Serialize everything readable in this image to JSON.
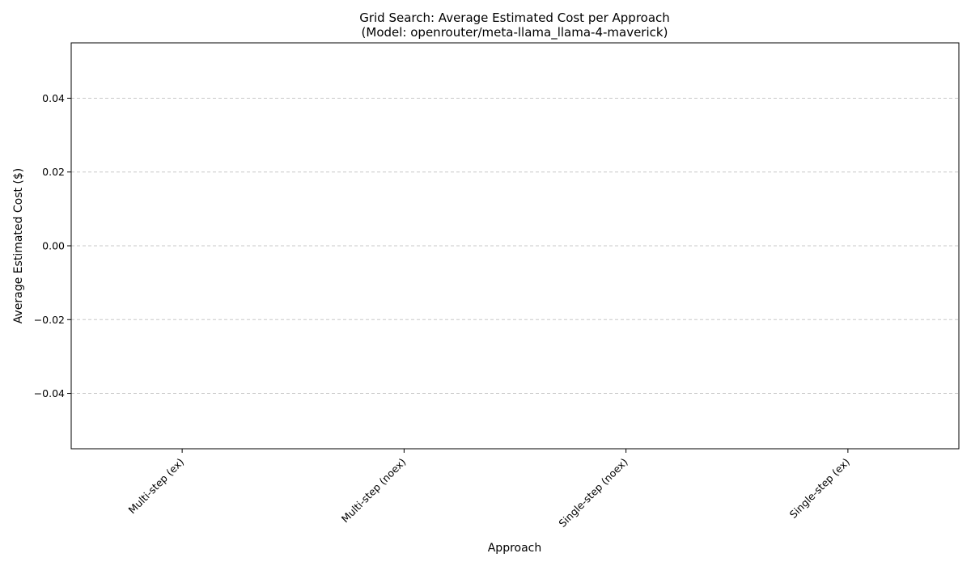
{
  "chart_data": {
    "type": "bar",
    "title": "Grid Search: Average Estimated Cost per Approach",
    "subtitle": "(Model: openrouter/meta-llama_llama-4-maverick)",
    "xlabel": "Approach",
    "ylabel": "Average Estimated Cost ($)",
    "categories": [
      "Multi-step (ex)",
      "Multi-step (noex)",
      "Single-step (noex)",
      "Single-step (ex)"
    ],
    "values": [
      0,
      0,
      0,
      0
    ],
    "ylim": [
      -0.055,
      0.055
    ],
    "yticks": [
      -0.04,
      -0.02,
      0.0,
      0.02,
      0.04
    ],
    "ytick_labels": [
      "−0.04",
      "−0.02",
      "0.00",
      "0.02",
      "0.04"
    ],
    "grid": "y-dashed",
    "colors": {
      "grid": "#c8c8c8",
      "axis": "#000000",
      "bar": "#1f77b4"
    }
  }
}
